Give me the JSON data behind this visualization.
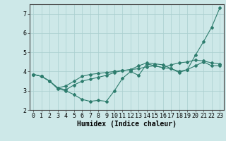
{
  "background_color": "#cde8e8",
  "line_color": "#2e7d6e",
  "grid_color": "#aacfcf",
  "xlabel": "Humidex (Indice chaleur)",
  "ylim": [
    2,
    7.5
  ],
  "xlim": [
    -0.5,
    23.5
  ],
  "yticks": [
    2,
    3,
    4,
    5,
    6,
    7
  ],
  "xticks": [
    0,
    1,
    2,
    3,
    4,
    5,
    6,
    7,
    8,
    9,
    10,
    11,
    12,
    13,
    14,
    15,
    16,
    17,
    18,
    19,
    20,
    21,
    22,
    23
  ],
  "series": [
    {
      "x": [
        0,
        1,
        2,
        3,
        4,
        5,
        6,
        7,
        8,
        9,
        10,
        11,
        12,
        13,
        14,
        15,
        16,
        17,
        18,
        19,
        20,
        21,
        22,
        23
      ],
      "y": [
        3.85,
        3.75,
        3.5,
        3.1,
        3.0,
        2.8,
        2.55,
        2.45,
        2.5,
        2.45,
        3.0,
        3.65,
        4.0,
        3.8,
        4.4,
        4.3,
        4.2,
        4.15,
        3.95,
        4.1,
        4.85,
        5.55,
        6.3,
        7.3
      ]
    },
    {
      "x": [
        0,
        1,
        2,
        3,
        4,
        5,
        6,
        7,
        8,
        9,
        10,
        11,
        12,
        13,
        14,
        15,
        16,
        17,
        18,
        19,
        20,
        21,
        22,
        23
      ],
      "y": [
        3.85,
        3.75,
        3.5,
        3.15,
        3.05,
        3.3,
        3.5,
        3.6,
        3.7,
        3.8,
        3.95,
        4.05,
        4.1,
        4.15,
        4.25,
        4.3,
        4.2,
        4.35,
        4.45,
        4.5,
        4.6,
        4.55,
        4.45,
        4.4
      ]
    },
    {
      "x": [
        0,
        1,
        2,
        3,
        4,
        5,
        6,
        7,
        8,
        9,
        10,
        11,
        12,
        13,
        14,
        15,
        16,
        17,
        18,
        19,
        20,
        21,
        22,
        23
      ],
      "y": [
        3.85,
        3.75,
        3.5,
        3.15,
        3.25,
        3.5,
        3.75,
        3.85,
        3.9,
        3.95,
        4.0,
        4.05,
        4.1,
        4.3,
        4.45,
        4.4,
        4.35,
        4.15,
        4.0,
        4.1,
        4.3,
        4.5,
        4.3,
        4.3
      ]
    }
  ],
  "marker": "D",
  "marker_size": 2.0,
  "line_width": 0.8,
  "font_family": "monospace",
  "xlabel_fontsize": 7,
  "tick_fontsize": 6
}
